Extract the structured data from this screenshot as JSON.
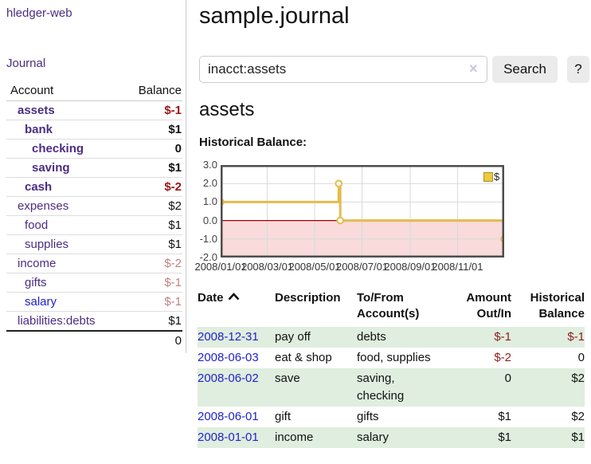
{
  "app": {
    "brand": "hledger-web",
    "nav_journal": "Journal"
  },
  "sidebar": {
    "columns": {
      "account": "Account",
      "balance": "Balance"
    },
    "accounts": [
      {
        "name": "assets",
        "depth": 1,
        "emph": true,
        "balance": "$-1",
        "balance_style": "neg-strong",
        "link_style": "plink"
      },
      {
        "name": "bank",
        "depth": 2,
        "emph": true,
        "balance": "$1",
        "balance_style": "",
        "link_style": "plink"
      },
      {
        "name": "checking",
        "depth": 3,
        "emph": true,
        "balance": "0",
        "balance_style": "",
        "link_style": "plink"
      },
      {
        "name": "saving",
        "depth": 3,
        "emph": true,
        "balance": "$1",
        "balance_style": "",
        "link_style": "plink"
      },
      {
        "name": "cash",
        "depth": 2,
        "emph": true,
        "balance": "$-2",
        "balance_style": "neg-strong",
        "link_style": "plink"
      },
      {
        "name": "expenses",
        "depth": 1,
        "emph": false,
        "balance": "$2",
        "balance_style": "",
        "link_style": "plink"
      },
      {
        "name": "food",
        "depth": 2,
        "emph": false,
        "balance": "$1",
        "balance_style": "",
        "link_style": "plink"
      },
      {
        "name": "supplies",
        "depth": 2,
        "emph": false,
        "balance": "$1",
        "balance_style": "",
        "link_style": "plink"
      },
      {
        "name": "income",
        "depth": 1,
        "emph": false,
        "balance": "$-2",
        "balance_style": "neg-muted",
        "link_style": "plink"
      },
      {
        "name": "gifts",
        "depth": 2,
        "emph": false,
        "balance": "$-1",
        "balance_style": "neg-muted",
        "link_style": "plink"
      },
      {
        "name": "salary",
        "depth": 2,
        "emph": false,
        "balance": "$-1",
        "balance_style": "neg-muted",
        "link_style": "blink"
      },
      {
        "name": "liabilities:debts",
        "depth": 1,
        "emph": false,
        "balance": "$1",
        "balance_style": "",
        "link_style": "plink"
      }
    ],
    "total": "0"
  },
  "header": {
    "title": "sample.journal"
  },
  "search": {
    "value": "inacct:assets",
    "clear_glyph": "×",
    "button_label": "Search",
    "help_label": "?"
  },
  "main": {
    "account_title": "assets",
    "chart_label": "Historical Balance:"
  },
  "chart_data": {
    "type": "line",
    "title": "Historical Balance",
    "step": true,
    "x_range": [
      "2008-01-01",
      "2008-12-31"
    ],
    "ylim": [
      -2,
      3
    ],
    "y_ticks": [
      {
        "label": "3.0",
        "value": 3
      },
      {
        "label": "2.0",
        "value": 2
      },
      {
        "label": "1.0",
        "value": 1
      },
      {
        "label": "0.0",
        "value": 0
      },
      {
        "label": "-1.0",
        "value": -1
      },
      {
        "label": "-2.0",
        "value": -2
      }
    ],
    "x_ticks": [
      {
        "label": "2008/01/01",
        "date": "2008-01-01"
      },
      {
        "label": "2008/03/01",
        "date": "2008-03-01"
      },
      {
        "label": "2008/05/01",
        "date": "2008-05-01"
      },
      {
        "label": "2008/07/01",
        "date": "2008-07-01"
      },
      {
        "label": "2008/09/01",
        "date": "2008-09-01"
      },
      {
        "label": "2008/11/01",
        "date": "2008-11-01"
      }
    ],
    "series": [
      {
        "name": "$",
        "points": [
          {
            "x": "2008-01-01",
            "y": 1
          },
          {
            "x": "2008-06-01",
            "y": 2
          },
          {
            "x": "2008-06-03",
            "y": 0
          },
          {
            "x": "2008-12-31",
            "y": -1
          }
        ]
      }
    ],
    "legend": {
      "label": "$",
      "position": "top-right"
    },
    "negative_region_fill": "#f9dbdb",
    "line_color": "#e3bc4f",
    "zero_line_color": "#990000",
    "grid": true
  },
  "register": {
    "columns": [
      {
        "label": "Date",
        "align": "left",
        "sorted_asc": true
      },
      {
        "label": "Description",
        "align": "left"
      },
      {
        "label": "To/From Account(s)",
        "align": "left"
      },
      {
        "label": "Amount Out/In",
        "align": "right"
      },
      {
        "label": "Historical Balance",
        "align": "right"
      }
    ],
    "rows": [
      {
        "date": "2008-12-31",
        "description": "pay off",
        "accounts": "debts",
        "amount": "$-1",
        "amount_neg": true,
        "balance": "$-1",
        "balance_neg": true
      },
      {
        "date": "2008-06-03",
        "description": "eat & shop",
        "accounts": "food, supplies",
        "amount": "$-2",
        "amount_neg": true,
        "balance": "0",
        "balance_neg": false
      },
      {
        "date": "2008-06-02",
        "description": "save",
        "accounts": "saving, checking",
        "amount": "0",
        "amount_neg": false,
        "balance": "$2",
        "balance_neg": false
      },
      {
        "date": "2008-06-01",
        "description": "gift",
        "accounts": "gifts",
        "amount": "$1",
        "amount_neg": false,
        "balance": "$2",
        "balance_neg": false
      },
      {
        "date": "2008-01-01",
        "description": "income",
        "accounts": "salary",
        "amount": "$1",
        "amount_neg": false,
        "balance": "$1",
        "balance_neg": false
      }
    ]
  },
  "colors": {
    "link_purple": "#4b2d83",
    "link_blue": "#2222cc",
    "negative_strong": "#9d1515",
    "negative_muted": "#c28383",
    "negative_register": "#8e1f1f",
    "stripe_green": "#dfeede",
    "chart_line": "#e3bc4f",
    "chart_negative_fill": "#f9dbdb",
    "chart_zero_line": "#990000",
    "button_gray": "#ebebeb"
  }
}
